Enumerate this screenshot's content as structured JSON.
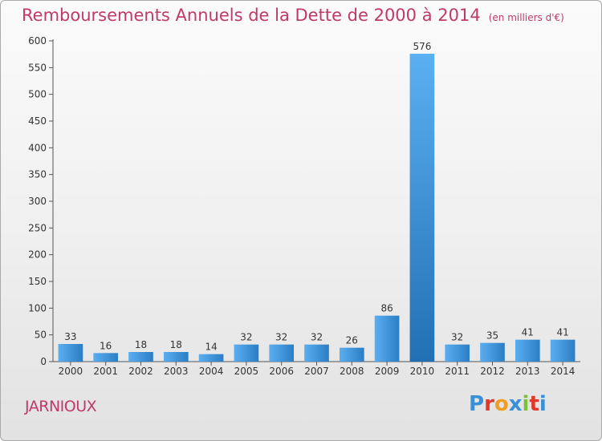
{
  "title": {
    "main": "Remboursements Annuels de la Dette de 2000 à 2014",
    "unit": "(en milliers d'€)"
  },
  "commune": "JARNIOUX",
  "logo": {
    "text": "Proxiti",
    "colors": [
      "#3a8fd9",
      "#e0392b",
      "#f19d22",
      "#3a8fd9",
      "#7bbf3a",
      "#e0392b",
      "#3a8fd9"
    ]
  },
  "colors": {
    "accent": "#c0396a",
    "bar_light": "#5aaef0",
    "bar_dark": "#2676bb",
    "axis": "#555555"
  },
  "chart_data": {
    "type": "bar",
    "title": "Remboursements Annuels de la Dette de 2000 à 2014",
    "categories": [
      "2000",
      "2001",
      "2002",
      "2003",
      "2004",
      "2005",
      "2006",
      "2007",
      "2008",
      "2009",
      "2010",
      "2011",
      "2012",
      "2013",
      "2014"
    ],
    "values": [
      33,
      16,
      18,
      18,
      14,
      32,
      32,
      32,
      26,
      86,
      576,
      32,
      35,
      41,
      41
    ],
    "ylim": [
      0,
      600
    ],
    "yticks": [
      0,
      50,
      100,
      150,
      200,
      250,
      300,
      350,
      400,
      450,
      500,
      550,
      600
    ],
    "grid": false,
    "data_labels": true
  }
}
